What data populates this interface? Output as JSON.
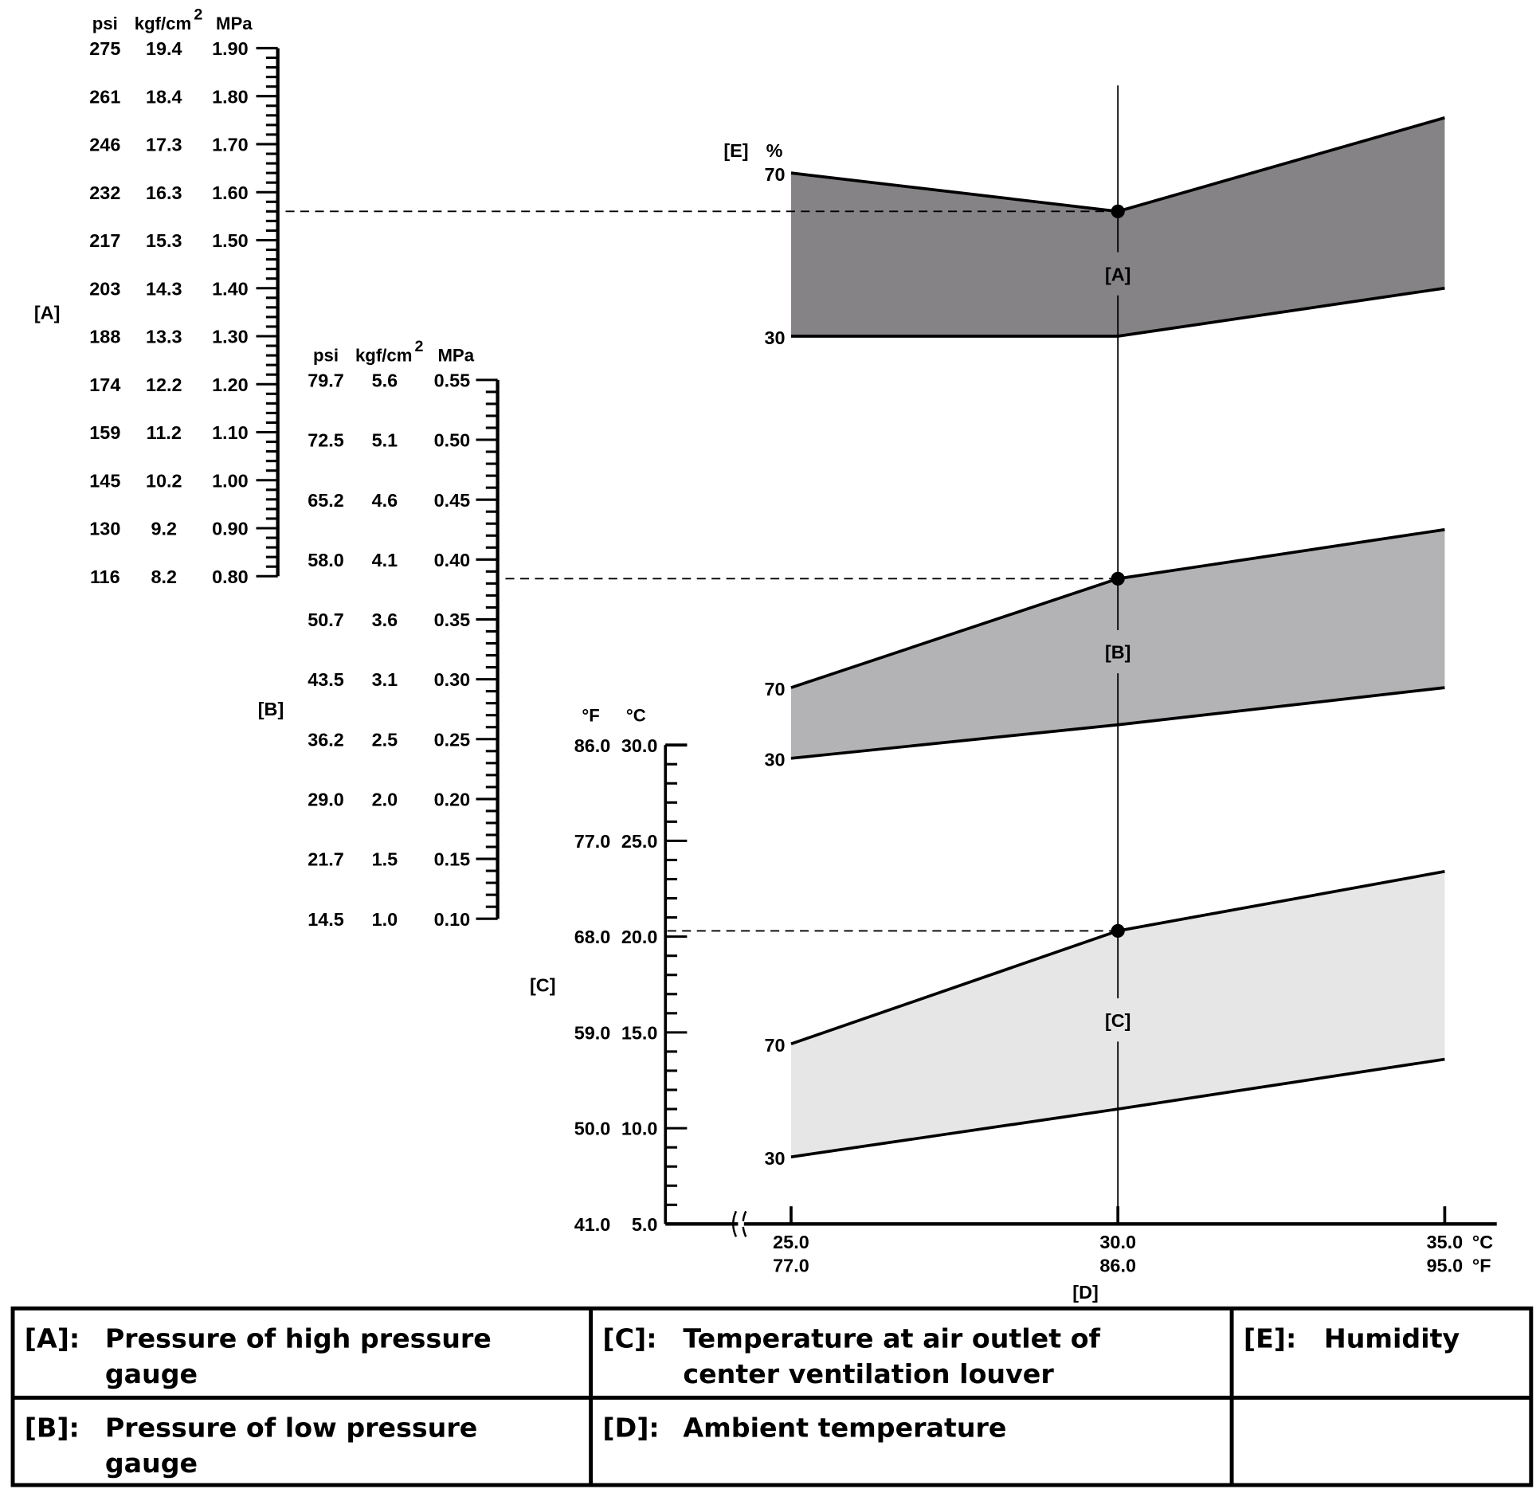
{
  "chart_data": {
    "type": "area",
    "title": "",
    "x_axis": {
      "label": "[D]",
      "unit_c": "°C",
      "unit_f": "°F",
      "ticks": [
        {
          "c": 25.0,
          "c_label": "25.0",
          "f_label": "77.0"
        },
        {
          "c": 30.0,
          "c_label": "30.0",
          "f_label": "86.0"
        },
        {
          "c": 35.0,
          "c_label": "35.0",
          "f_label": "95.0"
        }
      ],
      "range": [
        25,
        35
      ]
    },
    "axes": {
      "A": {
        "label": "[A]",
        "headers": [
          "psi",
          "kgf/cm",
          "2",
          "MPa"
        ],
        "range": [
          0.8,
          1.9
        ],
        "minor_step": 0.02,
        "ticks": [
          {
            "v": 1.9,
            "psi": "275",
            "kgf": "19.4",
            "mpa": "1.90"
          },
          {
            "v": 1.8,
            "psi": "261",
            "kgf": "18.4",
            "mpa": "1.80"
          },
          {
            "v": 1.7,
            "psi": "246",
            "kgf": "17.3",
            "mpa": "1.70"
          },
          {
            "v": 1.6,
            "psi": "232",
            "kgf": "16.3",
            "mpa": "1.60"
          },
          {
            "v": 1.5,
            "psi": "217",
            "kgf": "15.3",
            "mpa": "1.50"
          },
          {
            "v": 1.4,
            "psi": "203",
            "kgf": "14.3",
            "mpa": "1.40"
          },
          {
            "v": 1.3,
            "psi": "188",
            "kgf": "13.3",
            "mpa": "1.30"
          },
          {
            "v": 1.2,
            "psi": "174",
            "kgf": "12.2",
            "mpa": "1.20"
          },
          {
            "v": 1.1,
            "psi": "159",
            "kgf": "11.2",
            "mpa": "1.10"
          },
          {
            "v": 1.0,
            "psi": "145",
            "kgf": "10.2",
            "mpa": "1.00"
          },
          {
            "v": 0.9,
            "psi": "130",
            "kgf": "9.2",
            "mpa": "0.90"
          },
          {
            "v": 0.8,
            "psi": "116",
            "kgf": "8.2",
            "mpa": "0.80"
          }
        ]
      },
      "B": {
        "label": "[B]",
        "headers": [
          "psi",
          "kgf/cm",
          "2",
          "MPa"
        ],
        "range": [
          0.1,
          0.55
        ],
        "minor_step": 0.01,
        "ticks": [
          {
            "v": 0.55,
            "psi": "79.7",
            "kgf": "5.6",
            "mpa": "0.55"
          },
          {
            "v": 0.5,
            "psi": "72.5",
            "kgf": "5.1",
            "mpa": "0.50"
          },
          {
            "v": 0.45,
            "psi": "65.2",
            "kgf": "4.6",
            "mpa": "0.45"
          },
          {
            "v": 0.4,
            "psi": "58.0",
            "kgf": "4.1",
            "mpa": "0.40"
          },
          {
            "v": 0.35,
            "psi": "50.7",
            "kgf": "3.6",
            "mpa": "0.35"
          },
          {
            "v": 0.3,
            "psi": "43.5",
            "kgf": "3.1",
            "mpa": "0.30"
          },
          {
            "v": 0.25,
            "psi": "36.2",
            "kgf": "2.5",
            "mpa": "0.25"
          },
          {
            "v": 0.2,
            "psi": "29.0",
            "kgf": "2.0",
            "mpa": "0.20"
          },
          {
            "v": 0.15,
            "psi": "21.7",
            "kgf": "1.5",
            "mpa": "0.15"
          },
          {
            "v": 0.1,
            "psi": "14.5",
            "kgf": "1.0",
            "mpa": "0.10"
          }
        ]
      },
      "C": {
        "label": "[C]",
        "headers": [
          "°F",
          "°C"
        ],
        "range": [
          5,
          30
        ],
        "minor_step": 1,
        "ticks": [
          {
            "v": 30,
            "f": "86.0",
            "c": "30.0"
          },
          {
            "v": 25,
            "f": "77.0",
            "c": "25.0"
          },
          {
            "v": 20,
            "f": "68.0",
            "c": "20.0"
          },
          {
            "v": 15,
            "f": "59.0",
            "c": "15.0"
          },
          {
            "v": 10,
            "f": "50.0",
            "c": "10.0"
          },
          {
            "v": 5,
            "f": "41.0",
            "c": "5.0"
          }
        ]
      }
    },
    "humidity_header": [
      "[E]",
      "%"
    ],
    "series": [
      {
        "name": "[A]",
        "axis": "A",
        "color": "#858386",
        "x": [
          25,
          30,
          35
        ],
        "upper_70": [
          1.64,
          1.56,
          1.755
        ],
        "lower_30": [
          1.3,
          1.3,
          1.4
        ],
        "upper_label": "70",
        "lower_label": "30",
        "marker": {
          "x": 30,
          "y": 1.56
        }
      },
      {
        "name": "[B]",
        "axis": "B",
        "color": "#b3b2b4",
        "x": [
          25,
          30,
          35
        ],
        "upper_70": [
          0.293,
          0.384,
          0.425
        ],
        "lower_30": [
          0.234,
          0.262,
          0.293
        ],
        "upper_label": "70",
        "lower_label": "30",
        "marker": {
          "x": 30,
          "y": 0.384
        }
      },
      {
        "name": "[C]",
        "axis": "C",
        "color": "#e6e6e6",
        "x": [
          25,
          30,
          35
        ],
        "upper_70": [
          14.4,
          20.3,
          23.4
        ],
        "lower_30": [
          8.5,
          11.0,
          13.6
        ],
        "upper_label": "70",
        "lower_label": "30",
        "marker": {
          "x": 30,
          "y": 20.3
        }
      }
    ]
  },
  "legend_table": [
    [
      {
        "key": "[A]:",
        "lines": [
          "Pressure of high pressure",
          "gauge"
        ]
      },
      {
        "key": "[C]:",
        "lines": [
          "Temperature at air outlet of",
          "center ventilation louver"
        ]
      },
      {
        "key": "[E]:",
        "lines": [
          "Humidity"
        ]
      }
    ],
    [
      {
        "key": "[B]:",
        "lines": [
          "Pressure of low pressure",
          "gauge"
        ]
      },
      {
        "key": "[D]:",
        "lines": [
          "Ambient temperature"
        ]
      },
      {
        "key": "",
        "lines": []
      }
    ]
  ]
}
